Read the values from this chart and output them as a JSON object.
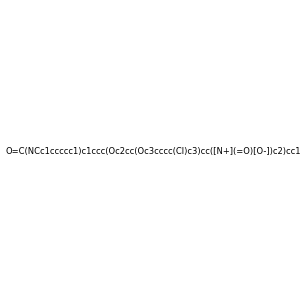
{
  "smiles": "O=C(NCc1ccccc1)c1ccc(Oc2cc(Oc3cccc(Cl)c3)cc([N+](=O)[O-])c2)cc1",
  "background_color": "#f0f0f0",
  "figsize": [
    3.0,
    3.0
  ],
  "dpi": 100
}
